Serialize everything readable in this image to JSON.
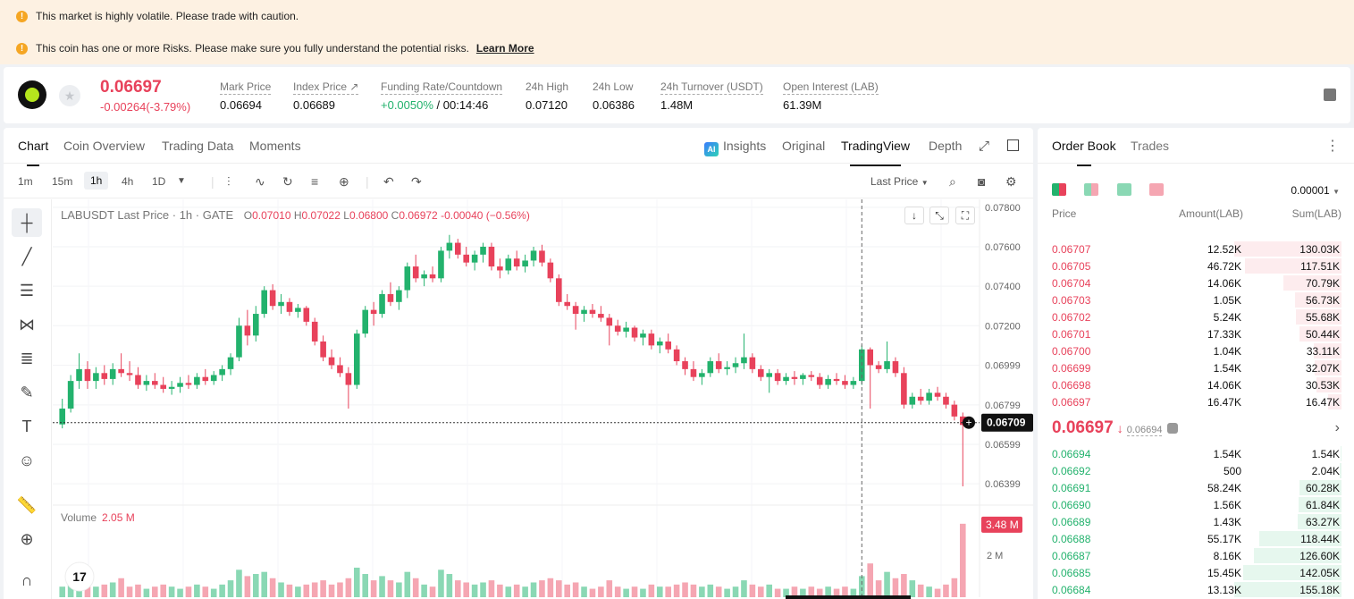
{
  "banners": [
    {
      "text": "This market is highly volatile. Please trade with caution.",
      "link": ""
    },
    {
      "text": "This coin has one or more Risks. Please make sure you fully understand the potential risks.",
      "link": "Learn More"
    }
  ],
  "ticker": {
    "price": "0.06697",
    "change": "-0.00264(-3.79%)",
    "stats": [
      {
        "label": "Mark Price",
        "value": "0.06694"
      },
      {
        "label": "Index Price ↗",
        "value": "0.06689"
      },
      {
        "label": "Funding Rate/Countdown",
        "value_green": "+0.0050%",
        "value": " / 00:14:46"
      },
      {
        "label": "24h High",
        "value": "0.07120"
      },
      {
        "label": "24h Low",
        "value": "0.06386"
      },
      {
        "label": "24h Turnover (USDT)",
        "value": "1.48M"
      },
      {
        "label": "Open Interest (LAB)",
        "value": "61.39M"
      }
    ]
  },
  "chart_tabs": [
    "Chart",
    "Coin Overview",
    "Trading Data",
    "Moments"
  ],
  "view_tabs": {
    "insights": "Insights",
    "original": "Original",
    "tradingview": "TradingView",
    "depth": "Depth"
  },
  "timeframes": [
    "1m",
    "15m",
    "1h",
    "4h",
    "1D"
  ],
  "active_timeframe": "1h",
  "last_price_select": "Last Price",
  "legend": {
    "symbol": "LABUSDT Last Price · 1h · GATE",
    "o_label": "O",
    "o": "0.07010",
    "h_label": "H",
    "h": "0.07022",
    "l_label": "L",
    "l": "0.06800",
    "c_label": "C",
    "c": "0.06972",
    "chg": "-0.00040 (−0.56%)"
  },
  "volume_label": "Volume",
  "volume_value": "2.05 M",
  "colors": {
    "up": "#23b26d",
    "down": "#e8425b",
    "up_light": "#8ad8b4",
    "down_light": "#f5a6b2"
  },
  "chart_data": {
    "type": "candlestick",
    "y_ticks": [
      "0.07800",
      "0.07600",
      "0.07400",
      "0.07200",
      "0.06999",
      "0.06799",
      "0.06599",
      "0.06399"
    ],
    "ylim": [
      0.063,
      0.0784
    ],
    "current_price_label": "0.06709",
    "current_price": 0.06709,
    "volume_ticks": [
      "2 M"
    ],
    "volume_max_label": "3.48 M",
    "volume_max": 3.48,
    "volume_ylim": [
      0,
      3.6
    ],
    "candles": [
      [
        0.067,
        0.0683,
        0.0668,
        0.0678,
        0.5
      ],
      [
        0.0678,
        0.0695,
        0.0676,
        0.0692,
        0.8
      ],
      [
        0.0692,
        0.0706,
        0.0688,
        0.0698,
        1.0
      ],
      [
        0.0698,
        0.0702,
        0.0688,
        0.0692,
        0.6
      ],
      [
        0.0692,
        0.0699,
        0.0688,
        0.0696,
        0.5
      ],
      [
        0.0696,
        0.07,
        0.069,
        0.0693,
        0.6
      ],
      [
        0.0693,
        0.0701,
        0.069,
        0.0698,
        0.7
      ],
      [
        0.0698,
        0.0706,
        0.0694,
        0.0696,
        0.9
      ],
      [
        0.0696,
        0.0702,
        0.0692,
        0.0695,
        0.5
      ],
      [
        0.0695,
        0.0699,
        0.0688,
        0.069,
        0.6
      ],
      [
        0.069,
        0.0695,
        0.0687,
        0.0692,
        0.4
      ],
      [
        0.0692,
        0.0696,
        0.0688,
        0.069,
        0.5
      ],
      [
        0.069,
        0.0694,
        0.0686,
        0.0688,
        0.6
      ],
      [
        0.0688,
        0.0692,
        0.0685,
        0.0689,
        0.5
      ],
      [
        0.0689,
        0.0694,
        0.0686,
        0.0691,
        0.4
      ],
      [
        0.0691,
        0.0695,
        0.0688,
        0.069,
        0.5
      ],
      [
        0.069,
        0.0696,
        0.0688,
        0.0694,
        0.6
      ],
      [
        0.0694,
        0.0698,
        0.069,
        0.0692,
        0.5
      ],
      [
        0.0692,
        0.0697,
        0.069,
        0.0695,
        0.4
      ],
      [
        0.0695,
        0.07,
        0.0692,
        0.0698,
        0.6
      ],
      [
        0.0698,
        0.0706,
        0.0695,
        0.0704,
        0.8
      ],
      [
        0.0704,
        0.0724,
        0.0702,
        0.072,
        1.3
      ],
      [
        0.072,
        0.0728,
        0.071,
        0.0715,
        1.0
      ],
      [
        0.0715,
        0.073,
        0.0712,
        0.0726,
        1.1
      ],
      [
        0.0726,
        0.074,
        0.0724,
        0.0738,
        1.2
      ],
      [
        0.0738,
        0.0741,
        0.0728,
        0.073,
        0.9
      ],
      [
        0.073,
        0.0736,
        0.0726,
        0.0732,
        0.7
      ],
      [
        0.0732,
        0.0734,
        0.0725,
        0.0727,
        0.6
      ],
      [
        0.0727,
        0.0731,
        0.0724,
        0.0729,
        0.5
      ],
      [
        0.0729,
        0.073,
        0.072,
        0.0722,
        0.6
      ],
      [
        0.0722,
        0.0724,
        0.071,
        0.0712,
        0.7
      ],
      [
        0.0712,
        0.0715,
        0.0702,
        0.0704,
        0.8
      ],
      [
        0.0704,
        0.0708,
        0.0698,
        0.07,
        0.6
      ],
      [
        0.07,
        0.0704,
        0.0694,
        0.0696,
        0.7
      ],
      [
        0.0696,
        0.0699,
        0.0678,
        0.069,
        0.9
      ],
      [
        0.069,
        0.0718,
        0.0688,
        0.0716,
        1.4
      ],
      [
        0.0716,
        0.073,
        0.0714,
        0.0728,
        1.1
      ],
      [
        0.0728,
        0.0732,
        0.072,
        0.0726,
        0.8
      ],
      [
        0.0726,
        0.0738,
        0.0724,
        0.0736,
        1.0
      ],
      [
        0.0736,
        0.0742,
        0.073,
        0.0732,
        0.8
      ],
      [
        0.0732,
        0.074,
        0.0728,
        0.0738,
        0.7
      ],
      [
        0.0738,
        0.0752,
        0.0734,
        0.075,
        1.2
      ],
      [
        0.075,
        0.0756,
        0.0742,
        0.0744,
        0.9
      ],
      [
        0.0744,
        0.0748,
        0.074,
        0.0746,
        0.6
      ],
      [
        0.0746,
        0.075,
        0.0742,
        0.0744,
        0.5
      ],
      [
        0.0744,
        0.076,
        0.0742,
        0.0758,
        1.3
      ],
      [
        0.0758,
        0.0766,
        0.0754,
        0.0762,
        1.1
      ],
      [
        0.0762,
        0.0764,
        0.0754,
        0.0756,
        0.8
      ],
      [
        0.0756,
        0.076,
        0.075,
        0.0752,
        0.7
      ],
      [
        0.0752,
        0.0758,
        0.0748,
        0.0756,
        0.6
      ],
      [
        0.0756,
        0.0762,
        0.0752,
        0.076,
        0.7
      ],
      [
        0.076,
        0.0762,
        0.0748,
        0.075,
        0.8
      ],
      [
        0.075,
        0.0754,
        0.0744,
        0.0748,
        0.6
      ],
      [
        0.0748,
        0.0756,
        0.0746,
        0.0754,
        0.5
      ],
      [
        0.0754,
        0.0758,
        0.0748,
        0.075,
        0.6
      ],
      [
        0.075,
        0.0756,
        0.0747,
        0.0753,
        0.5
      ],
      [
        0.0753,
        0.076,
        0.075,
        0.0758,
        0.7
      ],
      [
        0.0758,
        0.0761,
        0.075,
        0.0752,
        0.8
      ],
      [
        0.0752,
        0.0754,
        0.0742,
        0.0744,
        0.9
      ],
      [
        0.0744,
        0.0746,
        0.073,
        0.0732,
        0.8
      ],
      [
        0.0732,
        0.0736,
        0.0728,
        0.073,
        0.6
      ],
      [
        0.073,
        0.0732,
        0.0718,
        0.0726,
        0.7
      ],
      [
        0.0726,
        0.073,
        0.0722,
        0.0728,
        0.5
      ],
      [
        0.0728,
        0.0731,
        0.0724,
        0.0726,
        0.4
      ],
      [
        0.0726,
        0.073,
        0.0722,
        0.0724,
        0.5
      ],
      [
        0.0724,
        0.0726,
        0.071,
        0.072,
        0.8
      ],
      [
        0.072,
        0.0723,
        0.0715,
        0.0717,
        0.5
      ],
      [
        0.0717,
        0.0722,
        0.0714,
        0.0719,
        0.4
      ],
      [
        0.0719,
        0.072,
        0.0712,
        0.0714,
        0.5
      ],
      [
        0.0714,
        0.0718,
        0.071,
        0.0716,
        0.4
      ],
      [
        0.0716,
        0.0718,
        0.0708,
        0.071,
        0.6
      ],
      [
        0.071,
        0.0714,
        0.0706,
        0.0712,
        0.5
      ],
      [
        0.0712,
        0.0716,
        0.0706,
        0.0708,
        0.5
      ],
      [
        0.0708,
        0.071,
        0.07,
        0.0702,
        0.6
      ],
      [
        0.0702,
        0.0704,
        0.0695,
        0.0698,
        0.7
      ],
      [
        0.0698,
        0.0702,
        0.0692,
        0.0694,
        0.6
      ],
      [
        0.0694,
        0.0698,
        0.069,
        0.0696,
        0.5
      ],
      [
        0.0696,
        0.0704,
        0.0694,
        0.0702,
        0.6
      ],
      [
        0.0702,
        0.0706,
        0.0696,
        0.0698,
        0.5
      ],
      [
        0.0698,
        0.0702,
        0.0695,
        0.0699,
        0.4
      ],
      [
        0.0699,
        0.0704,
        0.0696,
        0.0701,
        0.5
      ],
      [
        0.0701,
        0.0716,
        0.0698,
        0.0704,
        0.8
      ],
      [
        0.0704,
        0.0706,
        0.0696,
        0.0698,
        0.6
      ],
      [
        0.0698,
        0.07,
        0.0692,
        0.0694,
        0.5
      ],
      [
        0.0694,
        0.0698,
        0.0686,
        0.0696,
        0.6
      ],
      [
        0.0696,
        0.0698,
        0.069,
        0.0692,
        0.4
      ],
      [
        0.0692,
        0.0696,
        0.069,
        0.0694,
        0.4
      ],
      [
        0.0694,
        0.0697,
        0.069,
        0.0693,
        0.5
      ],
      [
        0.0693,
        0.0696,
        0.069,
        0.0695,
        0.4
      ],
      [
        0.0695,
        0.0697,
        0.0692,
        0.0694,
        0.5
      ],
      [
        0.0694,
        0.0696,
        0.0688,
        0.069,
        0.4
      ],
      [
        0.069,
        0.0695,
        0.0688,
        0.0693,
        0.5
      ],
      [
        0.0693,
        0.0696,
        0.069,
        0.0692,
        0.4
      ],
      [
        0.0692,
        0.0695,
        0.0688,
        0.069,
        0.5
      ],
      [
        0.069,
        0.0694,
        0.0688,
        0.0692,
        0.4
      ],
      [
        0.0692,
        0.071,
        0.069,
        0.0708,
        1.0
      ],
      [
        0.0708,
        0.0709,
        0.0678,
        0.07,
        1.6
      ],
      [
        0.07,
        0.0702,
        0.0696,
        0.0698,
        0.8
      ],
      [
        0.0698,
        0.0712,
        0.0696,
        0.0702,
        1.2
      ],
      [
        0.0702,
        0.0704,
        0.0694,
        0.0696,
        0.9
      ],
      [
        0.0696,
        0.0699,
        0.0678,
        0.068,
        1.1
      ],
      [
        0.068,
        0.0686,
        0.0678,
        0.0684,
        0.8
      ],
      [
        0.0684,
        0.0688,
        0.068,
        0.0682,
        0.6
      ],
      [
        0.0682,
        0.0688,
        0.068,
        0.0686,
        0.5
      ],
      [
        0.0686,
        0.0689,
        0.0682,
        0.0684,
        0.4
      ],
      [
        0.0684,
        0.0686,
        0.0678,
        0.068,
        0.6
      ],
      [
        0.068,
        0.0682,
        0.0672,
        0.0674,
        0.9
      ],
      [
        0.0674,
        0.0676,
        0.06386,
        0.06697,
        3.48
      ]
    ]
  },
  "orderbook": {
    "tabs": [
      "Order Book",
      "Trades"
    ],
    "precision": "0.00001",
    "headers": {
      "price": "Price",
      "amount": "Amount(LAB)",
      "sum": "Sum(LAB)"
    },
    "asks": [
      {
        "price": "0.06707",
        "amount": "12.52K",
        "sum": "130.03K",
        "depth": 1.0
      },
      {
        "price": "0.06705",
        "amount": "46.72K",
        "sum": "117.51K",
        "depth": 0.904
      },
      {
        "price": "0.06704",
        "amount": "14.06K",
        "sum": "70.79K",
        "depth": 0.544
      },
      {
        "price": "0.06703",
        "amount": "1.05K",
        "sum": "56.73K",
        "depth": 0.436
      },
      {
        "price": "0.06702",
        "amount": "5.24K",
        "sum": "55.68K",
        "depth": 0.428
      },
      {
        "price": "0.06701",
        "amount": "17.33K",
        "sum": "50.44K",
        "depth": 0.388
      },
      {
        "price": "0.06700",
        "amount": "1.04K",
        "sum": "33.11K",
        "depth": 0.255
      },
      {
        "price": "0.06699",
        "amount": "1.54K",
        "sum": "32.07K",
        "depth": 0.247
      },
      {
        "price": "0.06698",
        "amount": "14.06K",
        "sum": "30.53K",
        "depth": 0.235
      },
      {
        "price": "0.06697",
        "amount": "16.47K",
        "sum": "16.47K",
        "depth": 0.127
      }
    ],
    "mid_price": "0.06697",
    "mid_index": "0.06694",
    "bids": [
      {
        "price": "0.06694",
        "amount": "1.54K",
        "sum": "1.54K",
        "depth": 0.01
      },
      {
        "price": "0.06692",
        "amount": "500",
        "sum": "2.04K",
        "depth": 0.013
      },
      {
        "price": "0.06691",
        "amount": "58.24K",
        "sum": "60.28K",
        "depth": 0.389
      },
      {
        "price": "0.06690",
        "amount": "1.56K",
        "sum": "61.84K",
        "depth": 0.399
      },
      {
        "price": "0.06689",
        "amount": "1.43K",
        "sum": "63.27K",
        "depth": 0.408
      },
      {
        "price": "0.06688",
        "amount": "55.17K",
        "sum": "118.44K",
        "depth": 0.764
      },
      {
        "price": "0.06687",
        "amount": "8.16K",
        "sum": "126.60K",
        "depth": 0.817
      },
      {
        "price": "0.06685",
        "amount": "15.45K",
        "sum": "142.05K",
        "depth": 0.916
      },
      {
        "price": "0.06684",
        "amount": "13.13K",
        "sum": "155.18K",
        "depth": 1.0
      }
    ]
  }
}
